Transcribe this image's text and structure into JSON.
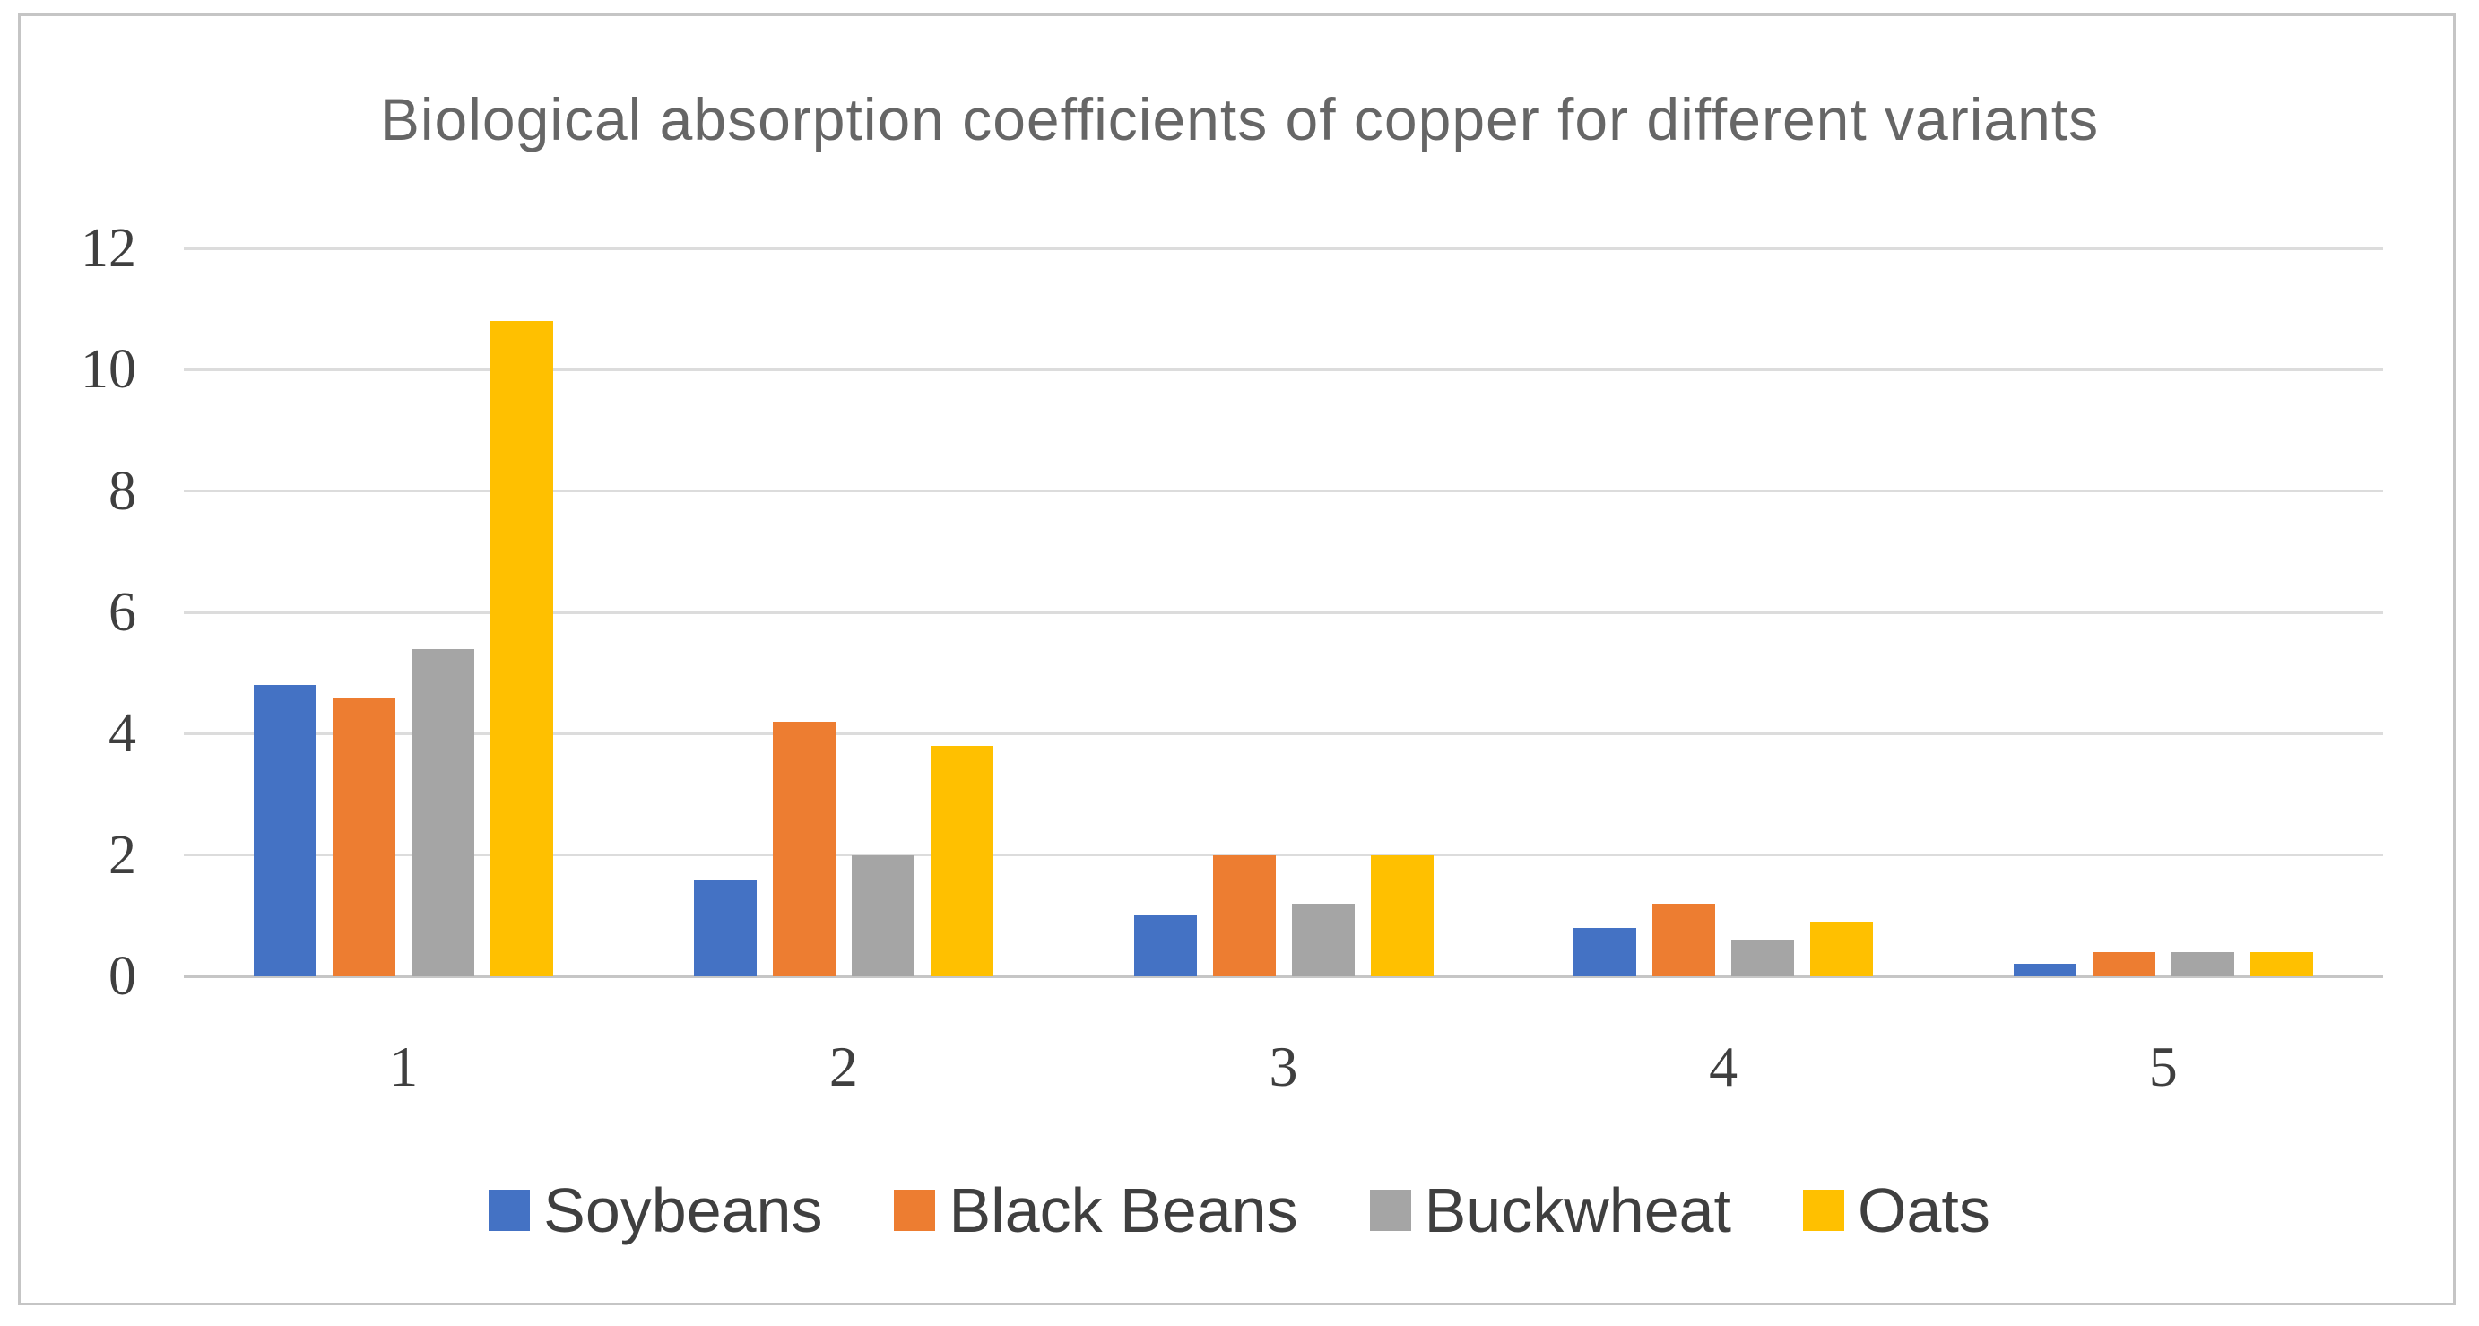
{
  "chart_data": {
    "type": "bar",
    "title": "Biological absorption coefficients of copper for different variants",
    "categories": [
      "1",
      "2",
      "3",
      "4",
      "5"
    ],
    "series": [
      {
        "name": "Soybeans",
        "color": "#4472C4",
        "values": [
          4.8,
          1.6,
          1.0,
          0.8,
          0.2
        ]
      },
      {
        "name": "Black Beans",
        "color": "#ED7D31",
        "values": [
          4.6,
          4.2,
          2.0,
          1.2,
          0.4
        ]
      },
      {
        "name": "Buckwheat",
        "color": "#A5A5A5",
        "values": [
          5.4,
          2.0,
          1.2,
          0.6,
          0.4
        ]
      },
      {
        "name": "Oats",
        "color": "#FFC000",
        "values": [
          10.8,
          3.8,
          2.0,
          0.9,
          0.4
        ]
      }
    ],
    "xlabel": "",
    "ylabel": "",
    "ylim": [
      0,
      12
    ],
    "ytick_step": 2,
    "yticks": [
      0,
      2,
      4,
      6,
      8,
      10,
      12
    ],
    "grid": true,
    "legend_position": "bottom"
  },
  "style_colors": {
    "gridline": "#dcdcdc",
    "axis_line": "#c6c6c6",
    "frame_border": "#c5c5c5",
    "title_text": "#666666",
    "tick_text": "#3f3f3f",
    "legend_text": "#3f3f3f",
    "background": "#ffffff"
  }
}
